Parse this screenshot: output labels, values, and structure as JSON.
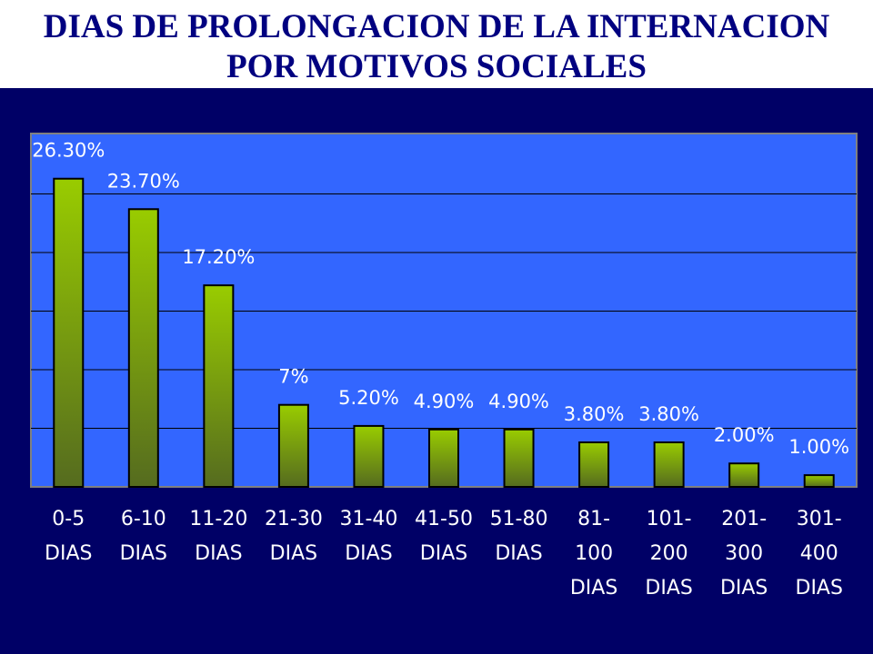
{
  "title_line1": "DIAS DE PROLONGACION DE LA INTERNACION",
  "title_line2": "POR MOTIVOS SOCIALES",
  "colors": {
    "background": "#000066",
    "plot_area": "#3366ff",
    "bar_top": "#99cc00",
    "bar_bottom": "#556b1f",
    "gridline": "#000000",
    "text": "#ffffff"
  },
  "chart_data": {
    "type": "bar",
    "title": "DIAS DE PROLONGACION DE LA INTERNACION POR MOTIVOS SOCIALES",
    "xlabel": "",
    "ylabel": "",
    "ylim": [
      0,
      30
    ],
    "grid": true,
    "legend": "none",
    "categories": [
      [
        "0-5",
        "DIAS"
      ],
      [
        "6-10",
        "DIAS"
      ],
      [
        "11-20",
        "DIAS"
      ],
      [
        "21-30",
        "DIAS"
      ],
      [
        "31-40",
        "DIAS"
      ],
      [
        "41-50",
        "DIAS"
      ],
      [
        "51-80",
        "DIAS"
      ],
      [
        "81-",
        "100",
        "DIAS"
      ],
      [
        "101-",
        "200",
        "DIAS"
      ],
      [
        "201-",
        "300",
        "DIAS"
      ],
      [
        "301-",
        "400",
        "DIAS"
      ]
    ],
    "values": [
      26.3,
      23.7,
      17.2,
      7,
      5.2,
      4.9,
      4.9,
      3.8,
      3.8,
      2.0,
      1.0
    ],
    "data_labels": [
      "26.30%",
      "23.70%",
      "17.20%",
      "7%",
      "5.20%",
      "4.90%",
      "4.90%",
      "3.80%",
      "3.80%",
      "2.00%",
      "1.00%"
    ]
  }
}
